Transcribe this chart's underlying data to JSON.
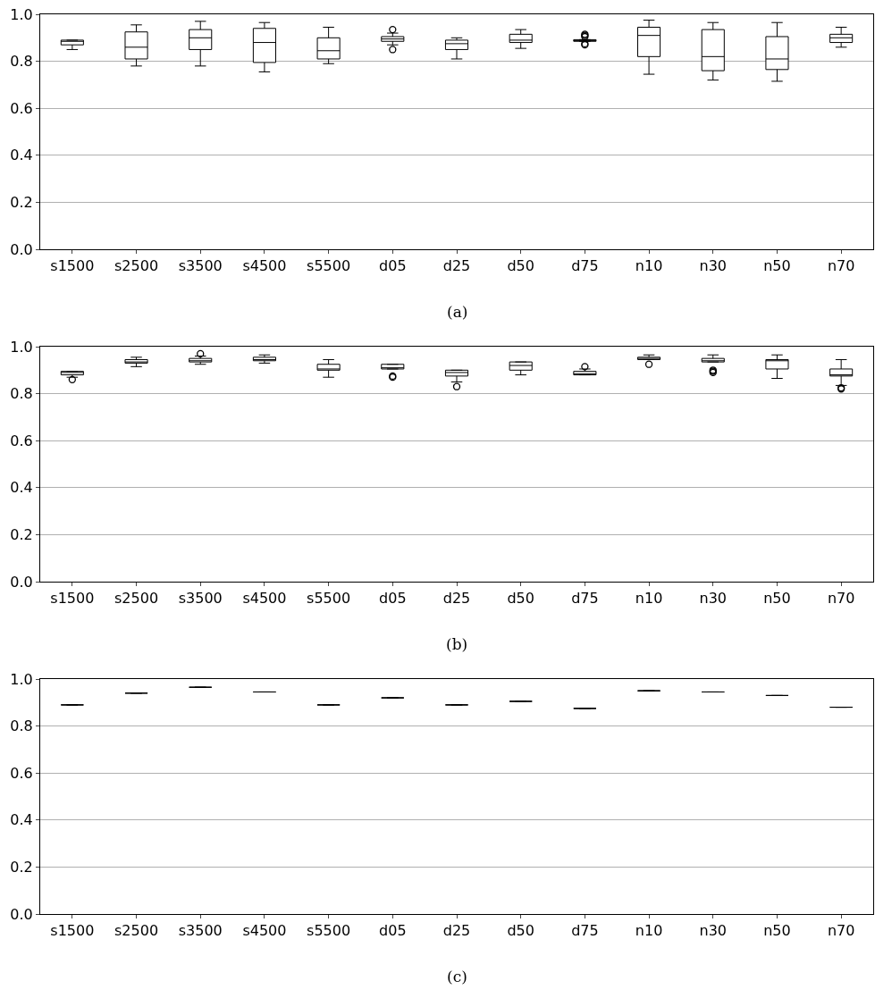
{
  "chart_data": [
    {
      "type": "box",
      "annotations": [
        "(a)"
      ],
      "categories": [
        "s1500",
        "s2500",
        "s3500",
        "s4500",
        "s5500",
        "d05",
        "d25",
        "d50",
        "d75",
        "n10",
        "n30",
        "n50",
        "n70"
      ],
      "color": "#000000",
      "grid": "y",
      "ylim": [
        0,
        1
      ],
      "yticks": [
        {
          "value": 0,
          "label": "0.0"
        },
        {
          "value": 0.2,
          "label": "0.2"
        },
        {
          "value": 0.4,
          "label": "0.4"
        },
        {
          "value": 0.6,
          "label": "0.6"
        },
        {
          "value": 0.8,
          "label": "0.8"
        },
        {
          "value": 1,
          "label": "1.0"
        }
      ],
      "marker": "circle",
      "boxes": [
        {
          "low": 0.85,
          "q1": 0.87,
          "median": 0.885,
          "q3": 0.89,
          "high": 0.89
        },
        {
          "low": 0.78,
          "q1": 0.81,
          "median": 0.86,
          "q3": 0.925,
          "high": 0.955
        },
        {
          "low": 0.78,
          "q1": 0.85,
          "median": 0.9,
          "q3": 0.935,
          "high": 0.97
        },
        {
          "low": 0.755,
          "q1": 0.795,
          "median": 0.88,
          "q3": 0.94,
          "high": 0.965
        },
        {
          "low": 0.79,
          "q1": 0.81,
          "median": 0.845,
          "q3": 0.9,
          "high": 0.945
        },
        {
          "low": 0.87,
          "q1": 0.885,
          "median": 0.895,
          "q3": 0.905,
          "high": 0.92,
          "outliers": [
            0.935,
            0.85
          ]
        },
        {
          "low": 0.81,
          "q1": 0.85,
          "median": 0.875,
          "q3": 0.89,
          "high": 0.9
        },
        {
          "low": 0.855,
          "q1": 0.88,
          "median": 0.89,
          "q3": 0.915,
          "high": 0.935
        },
        {
          "low": 0.885,
          "q1": 0.885,
          "median": 0.888,
          "q3": 0.892,
          "high": 0.892,
          "outliers": [
            0.87,
            0.875,
            0.905,
            0.91,
            0.915
          ]
        },
        {
          "low": 0.745,
          "q1": 0.82,
          "median": 0.91,
          "q3": 0.945,
          "high": 0.975
        },
        {
          "low": 0.72,
          "q1": 0.76,
          "median": 0.82,
          "q3": 0.935,
          "high": 0.965
        },
        {
          "low": 0.715,
          "q1": 0.765,
          "median": 0.81,
          "q3": 0.905,
          "high": 0.965
        },
        {
          "low": 0.86,
          "q1": 0.88,
          "median": 0.9,
          "q3": 0.915,
          "high": 0.945
        }
      ]
    },
    {
      "type": "box",
      "annotations": [
        "(b)"
      ],
      "categories": [
        "s1500",
        "s2500",
        "s3500",
        "s4500",
        "s5500",
        "d05",
        "d25",
        "d50",
        "d75",
        "n10",
        "n30",
        "n50",
        "n70"
      ],
      "color": "#000000",
      "grid": "y",
      "ylim": [
        0,
        1
      ],
      "yticks": [
        {
          "value": 0,
          "label": "0.0"
        },
        {
          "value": 0.2,
          "label": "0.2"
        },
        {
          "value": 0.4,
          "label": "0.4"
        },
        {
          "value": 0.6,
          "label": "0.6"
        },
        {
          "value": 0.8,
          "label": "0.8"
        },
        {
          "value": 1,
          "label": "1.0"
        }
      ],
      "marker": "circle",
      "boxes": [
        {
          "low": 0.87,
          "q1": 0.88,
          "median": 0.89,
          "q3": 0.895,
          "high": 0.895,
          "outliers": [
            0.86
          ]
        },
        {
          "low": 0.915,
          "q1": 0.93,
          "median": 0.935,
          "q3": 0.945,
          "high": 0.955
        },
        {
          "low": 0.925,
          "q1": 0.935,
          "median": 0.94,
          "q3": 0.95,
          "high": 0.96,
          "outliers": [
            0.97
          ]
        },
        {
          "low": 0.93,
          "q1": 0.94,
          "median": 0.945,
          "q3": 0.955,
          "high": 0.965
        },
        {
          "low": 0.87,
          "q1": 0.9,
          "median": 0.905,
          "q3": 0.925,
          "high": 0.945
        },
        {
          "low": 0.905,
          "q1": 0.905,
          "median": 0.91,
          "q3": 0.925,
          "high": 0.925,
          "outliers": [
            0.875,
            0.87
          ]
        },
        {
          "low": 0.85,
          "q1": 0.875,
          "median": 0.89,
          "q3": 0.9,
          "high": 0.9,
          "outliers": [
            0.83
          ]
        },
        {
          "low": 0.88,
          "q1": 0.9,
          "median": 0.92,
          "q3": 0.935,
          "high": 0.935
        },
        {
          "low": 0.88,
          "q1": 0.88,
          "median": 0.885,
          "q3": 0.895,
          "high": 0.905,
          "outliers": [
            0.915
          ]
        },
        {
          "low": 0.945,
          "q1": 0.945,
          "median": 0.95,
          "q3": 0.955,
          "high": 0.965,
          "outliers": [
            0.925
          ]
        },
        {
          "low": 0.935,
          "q1": 0.935,
          "median": 0.94,
          "q3": 0.95,
          "high": 0.965,
          "outliers": [
            0.9,
            0.895,
            0.89
          ]
        },
        {
          "low": 0.865,
          "q1": 0.905,
          "median": 0.94,
          "q3": 0.945,
          "high": 0.965
        },
        {
          "low": 0.835,
          "q1": 0.875,
          "median": 0.88,
          "q3": 0.905,
          "high": 0.945,
          "outliers": [
            0.825,
            0.82
          ]
        }
      ]
    },
    {
      "type": "box",
      "annotations": [
        "(c)"
      ],
      "categories": [
        "s1500",
        "s2500",
        "s3500",
        "s4500",
        "s5500",
        "d05",
        "d25",
        "d50",
        "d75",
        "n10",
        "n30",
        "n50",
        "n70"
      ],
      "color": "#000000",
      "grid": "y",
      "ylim": [
        0,
        1
      ],
      "yticks": [
        {
          "value": 0,
          "label": "0.0"
        },
        {
          "value": 0.2,
          "label": "0.2"
        },
        {
          "value": 0.4,
          "label": "0.4"
        },
        {
          "value": 0.6,
          "label": "0.6"
        },
        {
          "value": 0.8,
          "label": "0.8"
        },
        {
          "value": 1,
          "label": "1.0"
        }
      ],
      "boxes": [
        {
          "low": 0.89,
          "q1": 0.89,
          "median": 0.89,
          "q3": 0.89,
          "high": 0.89
        },
        {
          "low": 0.94,
          "q1": 0.94,
          "median": 0.94,
          "q3": 0.94,
          "high": 0.94
        },
        {
          "low": 0.965,
          "q1": 0.965,
          "median": 0.965,
          "q3": 0.965,
          "high": 0.965
        },
        {
          "low": 0.945,
          "q1": 0.945,
          "median": 0.945,
          "q3": 0.945,
          "high": 0.945
        },
        {
          "low": 0.89,
          "q1": 0.89,
          "median": 0.89,
          "q3": 0.89,
          "high": 0.89
        },
        {
          "low": 0.92,
          "q1": 0.92,
          "median": 0.92,
          "q3": 0.92,
          "high": 0.92
        },
        {
          "low": 0.89,
          "q1": 0.89,
          "median": 0.89,
          "q3": 0.89,
          "high": 0.89
        },
        {
          "low": 0.905,
          "q1": 0.905,
          "median": 0.905,
          "q3": 0.905,
          "high": 0.905
        },
        {
          "low": 0.875,
          "q1": 0.875,
          "median": 0.875,
          "q3": 0.875,
          "high": 0.875
        },
        {
          "low": 0.95,
          "q1": 0.95,
          "median": 0.95,
          "q3": 0.95,
          "high": 0.95
        },
        {
          "low": 0.945,
          "q1": 0.945,
          "median": 0.945,
          "q3": 0.945,
          "high": 0.945
        },
        {
          "low": 0.93,
          "q1": 0.93,
          "median": 0.93,
          "q3": 0.93,
          "high": 0.93
        },
        {
          "low": 0.88,
          "q1": 0.88,
          "median": 0.88,
          "q3": 0.88,
          "high": 0.88
        }
      ]
    }
  ]
}
